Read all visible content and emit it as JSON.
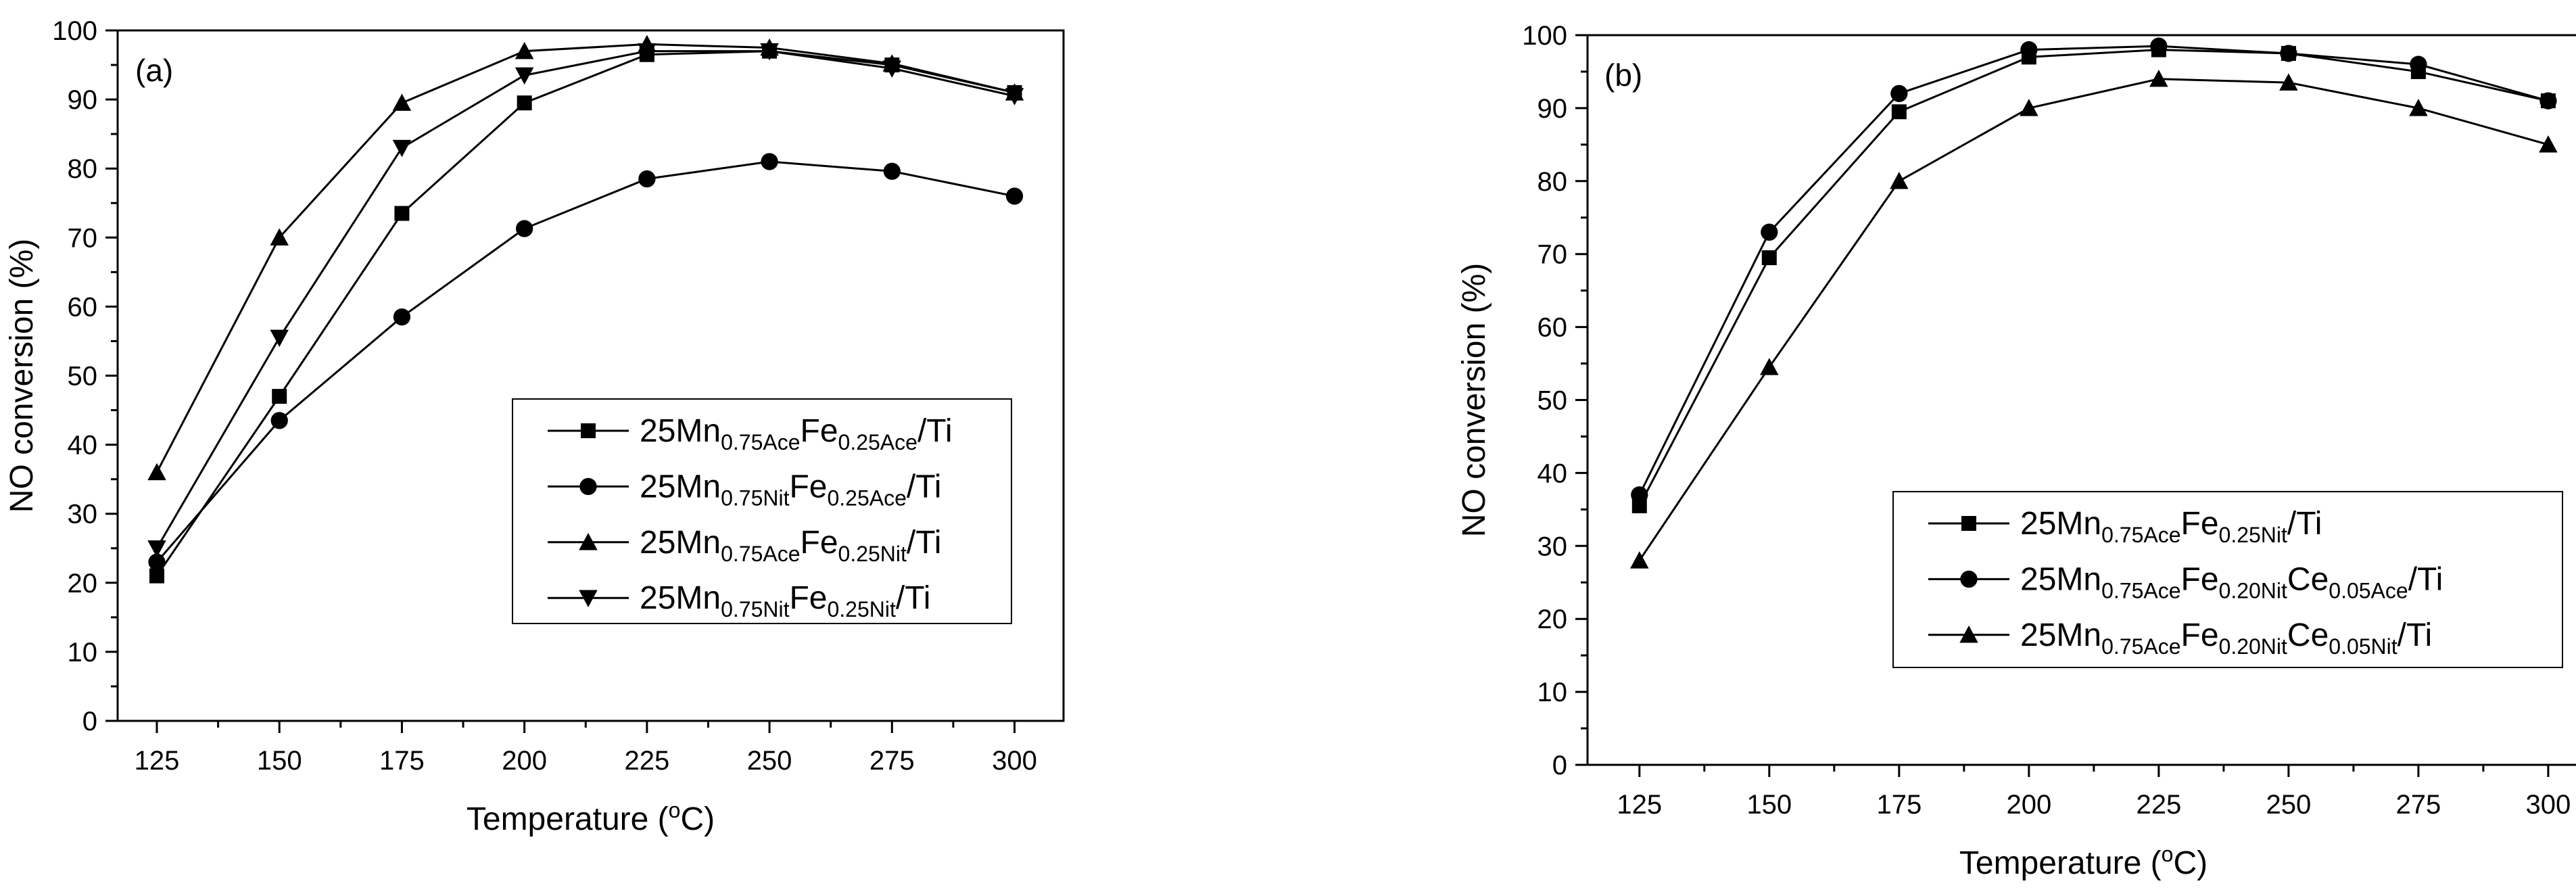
{
  "chart_data": [
    {
      "panel": "(a)",
      "type": "line",
      "xlabel": "Temperature (°C)",
      "xlabel_parts": [
        "Temperature (",
        "o",
        "C)"
      ],
      "ylabel": "NO conversion (%)",
      "x": [
        125,
        150,
        175,
        200,
        225,
        250,
        275,
        300
      ],
      "xlim": [
        117,
        310
      ],
      "ylim": [
        0,
        100
      ],
      "xticks": [
        125,
        150,
        175,
        200,
        225,
        250,
        275,
        300
      ],
      "yticks": [
        0,
        10,
        20,
        30,
        40,
        50,
        60,
        70,
        80,
        90,
        100
      ],
      "legend_position": "center-right",
      "series": [
        {
          "name": "25Mn0.75AceFe0.25Ace/Ti",
          "label_parts": [
            "25Mn",
            "0.75Ace",
            "Fe",
            "0.25Ace",
            "/Ti"
          ],
          "marker": "square",
          "values": [
            21,
            47,
            73.5,
            89.5,
            96.5,
            97,
            95,
            91
          ]
        },
        {
          "name": "25Mn0.75NitFe0.25Ace/Ti",
          "label_parts": [
            "25Mn",
            "0.75Nit",
            "Fe",
            "0.25Ace",
            "/Ti"
          ],
          "marker": "circle",
          "values": [
            23,
            43.5,
            58.5,
            71.3,
            78.5,
            81,
            79.6,
            76
          ]
        },
        {
          "name": "25Mn0.75AceFe0.25Nit/Ti",
          "label_parts": [
            "25Mn",
            "0.75Ace",
            "Fe",
            "0.25Nit",
            "/Ti"
          ],
          "marker": "triangle-up",
          "values": [
            36,
            70,
            89.5,
            97,
            98,
            97.5,
            95.2,
            91
          ]
        },
        {
          "name": "25Mn0.75NitFe0.25Nit/Ti",
          "label_parts": [
            "25Mn",
            "0.75Nit",
            "Fe",
            "0.25Nit",
            "/Ti"
          ],
          "marker": "triangle-down",
          "values": [
            25,
            55.5,
            83,
            93.5,
            97,
            97,
            94.5,
            90.5
          ]
        }
      ]
    },
    {
      "panel": "(b)",
      "type": "line",
      "xlabel": "Temperature (°C)",
      "xlabel_parts": [
        "Temperature (",
        "o",
        "C)"
      ],
      "ylabel": "NO conversion (%)",
      "x": [
        125,
        150,
        175,
        200,
        225,
        250,
        275,
        300
      ],
      "xlim": [
        115,
        306
      ],
      "ylim": [
        0,
        100
      ],
      "xticks": [
        125,
        150,
        175,
        200,
        225,
        250,
        275,
        300
      ],
      "yticks": [
        0,
        10,
        20,
        30,
        40,
        50,
        60,
        70,
        80,
        90,
        100
      ],
      "legend_position": "lower-right",
      "series": [
        {
          "name": "25Mn0.75AceFe0.25Nit/Ti",
          "label_parts": [
            "25Mn",
            "0.75Ace",
            "Fe",
            "0.25Nit",
            "/Ti"
          ],
          "marker": "square",
          "values": [
            35.5,
            69.5,
            89.5,
            97,
            98,
            97.5,
            95,
            91
          ]
        },
        {
          "name": "25Mn0.75AceFe0.20NitCe0.05Ace/Ti",
          "label_parts": [
            "25Mn",
            "0.75Ace",
            "Fe",
            "0.20Nit",
            "Ce",
            "0.05Ace",
            "/Ti"
          ],
          "marker": "circle",
          "values": [
            37,
            73,
            92,
            98,
            98.5,
            97.5,
            96,
            91
          ]
        },
        {
          "name": "25Mn0.75AceFe0.20NitCe0.05Nit/Ti",
          "label_parts": [
            "25Mn",
            "0.75Ace",
            "Fe",
            "0.20Nit",
            "Ce",
            "0.05Nit",
            "/Ti"
          ],
          "marker": "triangle-up",
          "values": [
            28,
            54.5,
            80,
            90,
            94,
            93.5,
            90,
            85
          ]
        }
      ]
    }
  ]
}
